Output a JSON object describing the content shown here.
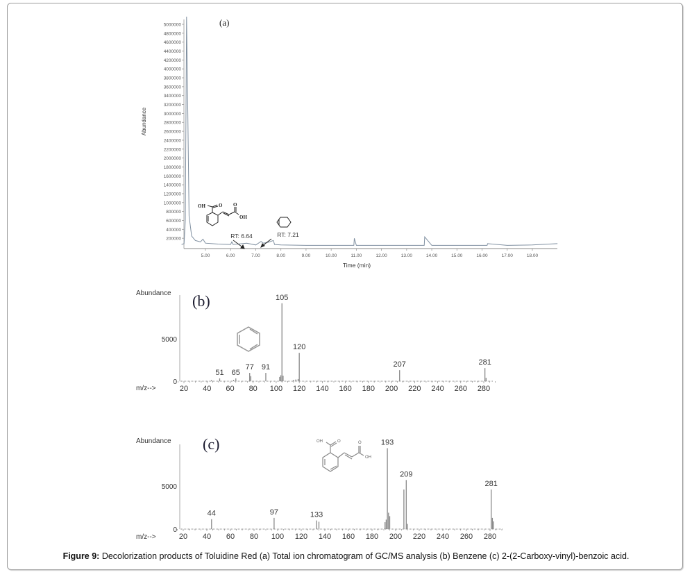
{
  "figure": {
    "caption_label": "Figure 9:",
    "caption_text": " Decolorization products of Toluidine Red (a) Total ion chromatogram of GC/MS analysis (b) Benzene (c) 2-(2-Carboxy-vinyl)-benzoic acid."
  },
  "panel_a": {
    "label": "(a)",
    "ylabel": "Abundance",
    "xlabel": "Time (min)",
    "annotation_1": "RT: 6.64",
    "annotation_2": "RT: 7.21",
    "structure_labels": [
      "OH",
      "O",
      "O",
      "OH"
    ]
  },
  "panel_b": {
    "label": "(b)",
    "ylabel": "Abundance",
    "xlabel": "m/z-->"
  },
  "panel_c": {
    "label": "(c)",
    "ylabel": "Abundance",
    "xlabel": "m/z-->",
    "structure_labels": [
      "OH",
      "O",
      "O",
      "OH"
    ]
  },
  "chart_data": [
    {
      "type": "line",
      "title": "(a) Total ion chromatogram",
      "xlabel": "Time (min)",
      "ylabel": "Abundance",
      "xlim": [
        4.0,
        19.0
      ],
      "ylim": [
        0,
        5200000
      ],
      "x_ticks": [
        "5.00",
        "6.00",
        "7.00",
        "8.00",
        "9.00",
        "10.00",
        "11.00",
        "12.00",
        "13.00",
        "14.00",
        "15.00",
        "16.00",
        "17.00",
        "18.00"
      ],
      "y_ticks": [
        "200000",
        "400000",
        "600000",
        "800000",
        "1000000",
        "1200000",
        "1400000",
        "1600000",
        "1800000",
        "2000000",
        "2200000",
        "2400000",
        "2600000",
        "2800000",
        "3000000",
        "3200000",
        "3400000",
        "3600000",
        "3800000",
        "4000000",
        "4200000",
        "4400000",
        "4600000",
        "4800000",
        "5000000"
      ],
      "x": [
        4.05,
        4.15,
        4.2,
        4.25,
        4.3,
        4.35,
        4.45,
        4.6,
        4.8,
        4.9,
        5.0,
        5.5,
        6.0,
        6.05,
        6.1,
        6.64,
        7.0,
        7.21,
        7.3,
        7.5,
        7.7,
        7.75,
        8.0,
        9.0,
        10.0,
        10.9,
        10.92,
        11.0,
        12.0,
        13.0,
        13.7,
        13.72,
        14.0,
        15.0,
        16.2,
        16.22,
        17.0,
        18.0,
        19.0
      ],
      "y": [
        60000,
        80000,
        600000,
        5300000,
        3000000,
        700000,
        250000,
        150000,
        120000,
        180000,
        90000,
        70000,
        60000,
        120000,
        60000,
        90000,
        50000,
        130000,
        90000,
        110000,
        150000,
        60000,
        50000,
        40000,
        40000,
        40000,
        200000,
        40000,
        40000,
        40000,
        40000,
        230000,
        40000,
        40000,
        40000,
        80000,
        40000,
        50000,
        80000
      ],
      "annotations": [
        {
          "text": "RT: 6.64",
          "x": 6.64,
          "compound": "2-(2-Carboxy-vinyl)-benzoic acid"
        },
        {
          "text": "RT: 7.21",
          "x": 7.21,
          "compound": "Benzene"
        }
      ],
      "grid": false
    },
    {
      "type": "bar",
      "title": "(b) Benzene mass spectrum",
      "xlabel": "m/z-->",
      "ylabel": "Abundance",
      "xlim": [
        15,
        290
      ],
      "ylim": [
        0,
        9500
      ],
      "x_ticks": [
        20,
        40,
        60,
        80,
        100,
        120,
        140,
        160,
        180,
        200,
        220,
        240,
        260,
        280
      ],
      "y_ticks": [
        0,
        5000
      ],
      "x": [
        44,
        51,
        63,
        65,
        77,
        78,
        91,
        103,
        104,
        105,
        106,
        115,
        117,
        119,
        120,
        207,
        281,
        282
      ],
      "values": [
        150,
        330,
        150,
        330,
        980,
        600,
        980,
        500,
        700,
        9200,
        650,
        150,
        200,
        250,
        3350,
        1300,
        1550,
        400
      ],
      "peak_labels": [
        51,
        65,
        77,
        91,
        105,
        120,
        207,
        281
      ],
      "grid": false
    },
    {
      "type": "bar",
      "title": "(c) 2-(2-Carboxy-vinyl)-benzoic acid mass spectrum",
      "xlabel": "m/z-->",
      "ylabel": "Abundance",
      "xlim": [
        15,
        290
      ],
      "ylim": [
        0,
        9500
      ],
      "x_ticks": [
        20,
        40,
        60,
        80,
        100,
        120,
        140,
        160,
        180,
        200,
        220,
        240,
        260,
        280
      ],
      "y_ticks": [
        0,
        5000
      ],
      "x": [
        44,
        97,
        133,
        135,
        191,
        192,
        193,
        194,
        195,
        207,
        209,
        210,
        281,
        282,
        283
      ],
      "values": [
        1150,
        1300,
        1000,
        850,
        800,
        1100,
        9400,
        1900,
        1500,
        4600,
        5700,
        600,
        4600,
        1300,
        900
      ],
      "peak_labels": [
        44,
        97,
        133,
        193,
        209,
        281
      ],
      "grid": false
    }
  ]
}
